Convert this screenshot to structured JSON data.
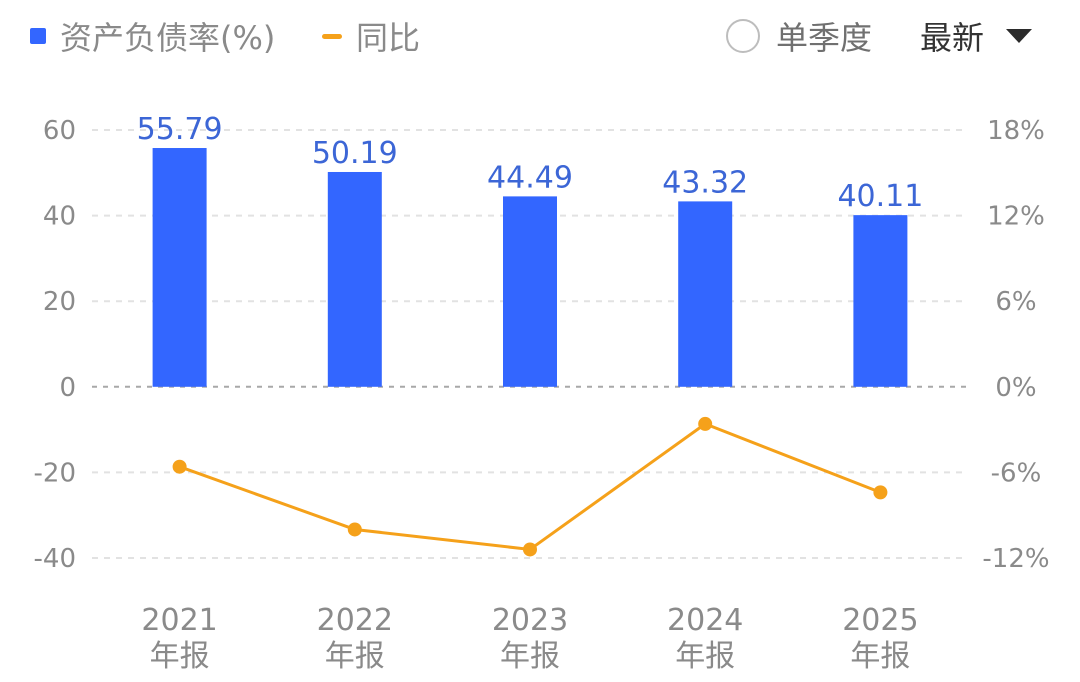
{
  "legend": {
    "bar_label": "资产负债率(%)",
    "line_label": "同比"
  },
  "controls": {
    "quarter_toggle_label": "单季度",
    "quarter_toggle_checked": false,
    "period_dropdown_value": "最新"
  },
  "colors": {
    "bar": "#3366ff",
    "line": "#f5a11a",
    "label": "#3c66d6",
    "grid": "#e2e2e2",
    "zero_line": "#a8a8a8",
    "axis_text": "#8a8a8a"
  },
  "chart_data": {
    "type": "bar+line",
    "categories": [
      {
        "year": "2021",
        "suffix": "年报"
      },
      {
        "year": "2022",
        "suffix": "年报"
      },
      {
        "year": "2023",
        "suffix": "年报"
      },
      {
        "year": "2024",
        "suffix": "年报"
      },
      {
        "year": "2025",
        "suffix": "年报"
      }
    ],
    "bar_series": {
      "name": "资产负债率(%)",
      "values": [
        55.79,
        50.19,
        44.49,
        43.32,
        40.11
      ],
      "labels": [
        "55.79",
        "50.19",
        "44.49",
        "43.32",
        "40.11"
      ],
      "axis": "left"
    },
    "line_series": {
      "name": "同比",
      "values": [
        -5.6,
        -10.0,
        -11.4,
        -2.6,
        -7.4
      ],
      "axis": "right",
      "unit": "%"
    },
    "left_axis": {
      "ticks": [
        60,
        40,
        20,
        0,
        -20,
        -40
      ],
      "tick_labels": [
        "60",
        "40",
        "20",
        "0",
        "-20",
        "-40"
      ],
      "range": [
        -40,
        60
      ]
    },
    "right_axis": {
      "ticks": [
        18,
        12,
        6,
        0,
        -6,
        -12
      ],
      "tick_labels": [
        "18%",
        "12%",
        "6%",
        "0%",
        "-6%",
        "-12%"
      ],
      "range": [
        -12,
        18
      ]
    },
    "grid": true
  }
}
